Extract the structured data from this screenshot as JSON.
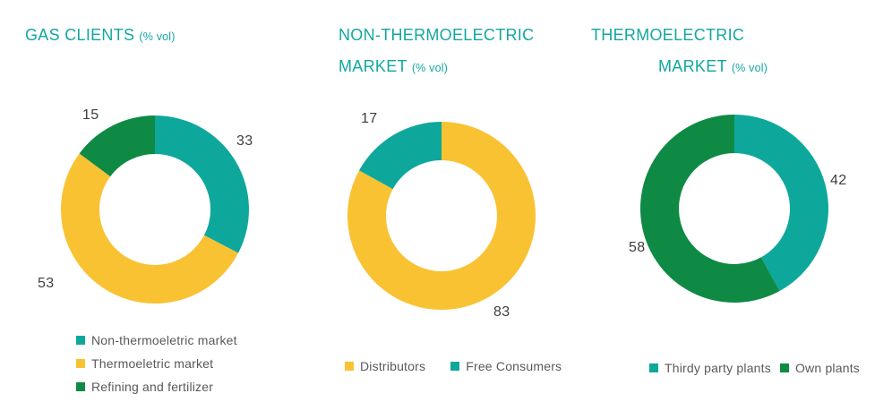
{
  "colors": {
    "teal": "#0da89b",
    "yellow": "#f9c233",
    "dark_green": "#0e8a44",
    "title_text": "#12a7a0",
    "value_label_text": "#3f3f3f",
    "legend_text": "#58595b",
    "background": "#ffffff"
  },
  "chart_data": [
    {
      "type": "pie",
      "variant": "donut",
      "title": "GAS CLIENTS",
      "title_line1": "GAS CLIENTS",
      "unit_label": "(% vol)",
      "legend_position": "bottom-left-vertical",
      "inner_radius_ratio": 0.59,
      "start_angle_deg": 0,
      "direction": "clockwise",
      "slices": [
        {
          "label": "Non-thermoeletric market",
          "value": 33,
          "color": "#0da89b"
        },
        {
          "label": "Thermoeletric market",
          "value": 53,
          "color": "#f9c233"
        },
        {
          "label": "Refining and fertilizer",
          "value": 15,
          "color": "#0e8a44"
        }
      ]
    },
    {
      "type": "pie",
      "variant": "donut",
      "title": "NON-THERMOELECTRIC MARKET",
      "title_line1": "NON-THERMOELECTRIC",
      "title_line2": "MARKET",
      "unit_label": "(% vol)",
      "legend_position": "bottom-horizontal",
      "inner_radius_ratio": 0.59,
      "start_angle_deg": 0,
      "direction": "clockwise",
      "slices": [
        {
          "label": "Distributors",
          "value": 83,
          "color": "#f9c233"
        },
        {
          "label": "Free Consumers",
          "value": 17,
          "color": "#0da89b"
        }
      ]
    },
    {
      "type": "pie",
      "variant": "donut",
      "title": "THERMOELECTRIC MARKET",
      "title_line1": "THERMOELECTRIC",
      "title_line2": "MARKET",
      "unit_label": "(% vol)",
      "legend_position": "bottom-horizontal",
      "inner_radius_ratio": 0.59,
      "start_angle_deg": 0,
      "direction": "clockwise",
      "slices": [
        {
          "label": "Thirdy party plants",
          "value": 42,
          "color": "#0da89b"
        },
        {
          "label": "Own plants",
          "value": 58,
          "color": "#0e8a44"
        }
      ]
    }
  ]
}
